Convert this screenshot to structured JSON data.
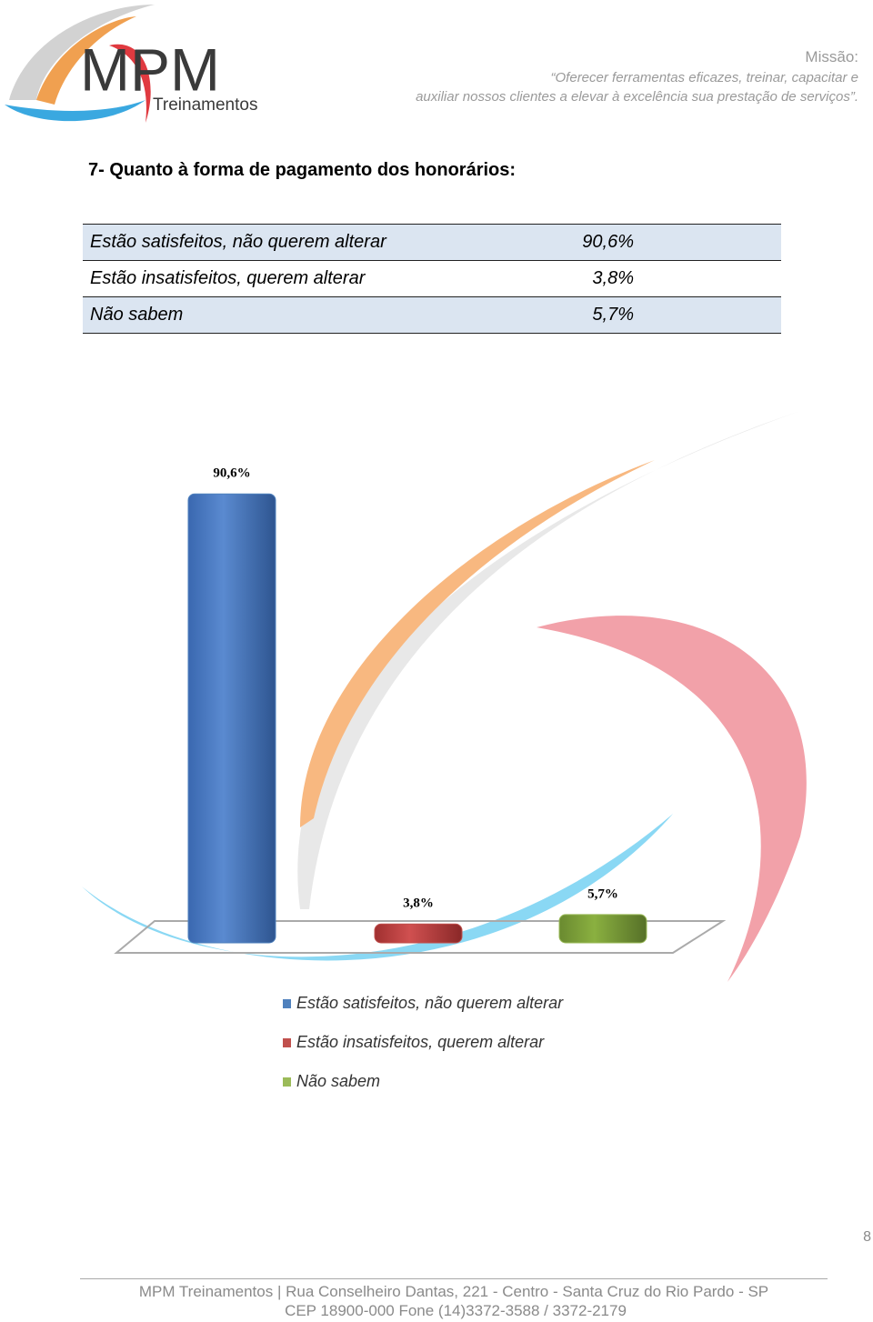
{
  "header": {
    "logo": "MPM",
    "logo_sub": "Treinamentos",
    "mission_label": "Missão:",
    "mission_lines": [
      "“Oferecer ferramentas eficazes, treinar, capacitar e",
      "auxiliar nossos clientes a elevar à excelência sua prestação de serviços”."
    ]
  },
  "question": "7- Quanto à forma de pagamento dos honorários:",
  "table": {
    "rows": [
      [
        "Estão satisfeitos, não querem alterar",
        "90,6%"
      ],
      [
        "Estão insatisfeitos, querem alterar",
        "3,8%"
      ],
      [
        "Não sabem",
        "5,7%"
      ]
    ]
  },
  "chart_data": {
    "type": "bar",
    "categories": [
      "Estão satisfeitos, não querem alterar",
      "Estão insatisfeitos, querem alterar",
      "Não sabem"
    ],
    "values": [
      90.6,
      3.8,
      5.7
    ],
    "value_labels": [
      "90,6%",
      "3,8%",
      "5,7%"
    ],
    "colors": [
      "#4f81bd",
      "#c0504d",
      "#9bbb59"
    ],
    "legend": "bottom"
  },
  "page_number": "8",
  "footer": [
    "MPM Treinamentos | Rua Conselheiro Dantas, 221 - Centro - Santa Cruz do Rio Pardo - SP",
    "CEP 18900-000    Fone (14)3372-3588 / 3372-2179"
  ]
}
